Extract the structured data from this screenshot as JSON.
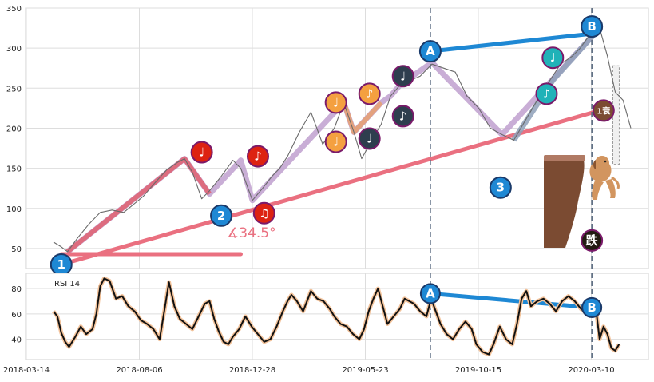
{
  "chart_data": [
    {
      "type": "line",
      "panel": "price",
      "ylim": [
        25,
        350
      ],
      "yticks": [
        50,
        100,
        150,
        200,
        250,
        300,
        350
      ],
      "grid": true,
      "x_dates": [
        "2018-03-14",
        "2018-08-06",
        "2018-12-28",
        "2019-05-23",
        "2019-10-15",
        "2020-03-10"
      ],
      "xlim_days": [
        0,
        740
      ],
      "series": [
        {
          "points": [
            [
              0,
              58
            ],
            [
              10,
              52
            ],
            [
              18,
              46
            ],
            [
              30,
              62
            ],
            [
              45,
              80
            ],
            [
              60,
              95
            ],
            [
              75,
              98
            ],
            [
              90,
              95
            ],
            [
              100,
              103
            ],
            [
              115,
              115
            ],
            [
              130,
              132
            ],
            [
              145,
              148
            ],
            [
              160,
              158
            ],
            [
              168,
              162
            ],
            [
              178,
              145
            ],
            [
              190,
              112
            ],
            [
              200,
              122
            ],
            [
              215,
              140
            ],
            [
              230,
              160
            ],
            [
              240,
              150
            ],
            [
              255,
              110
            ],
            [
              268,
              125
            ],
            [
              280,
              140
            ],
            [
              290,
              150
            ],
            [
              300,
              165
            ],
            [
              315,
              195
            ],
            [
              330,
              220
            ],
            [
              345,
              180
            ],
            [
              360,
              200
            ],
            [
              372,
              232
            ],
            [
              385,
              195
            ],
            [
              395,
              162
            ],
            [
              408,
              185
            ],
            [
              420,
              205
            ],
            [
              432,
              240
            ],
            [
              445,
              255
            ],
            [
              458,
              260
            ],
            [
              470,
              265
            ],
            [
              485,
              280
            ],
            [
              500,
              275
            ],
            [
              515,
              270
            ],
            [
              530,
              240
            ],
            [
              545,
              225
            ],
            [
              560,
              200
            ],
            [
              575,
              192
            ],
            [
              590,
              185
            ],
            [
              605,
              210
            ],
            [
              620,
              235
            ],
            [
              635,
              258
            ],
            [
              650,
              280
            ],
            [
              665,
              290
            ],
            [
              675,
              300
            ],
            [
              690,
              320
            ],
            [
              700,
              325
            ],
            [
              710,
              290
            ],
            [
              720,
              245
            ],
            [
              730,
              235
            ],
            [
              740,
              200
            ]
          ]
        }
      ],
      "annotations": {
        "angle_label": "∡34.5°",
        "points": [
          {
            "label": "1",
            "x": 10,
            "y": 30,
            "color": "#1e88d4"
          },
          {
            "label": "2",
            "x": 215,
            "y": 91,
            "color": "#1e88d4"
          },
          {
            "label": "3",
            "x": 573,
            "y": 126,
            "color": "#1e88d4"
          },
          {
            "label": "A",
            "x": 483,
            "y": 296,
            "color": "#1e88d4"
          },
          {
            "label": "B",
            "x": 690,
            "y": 327,
            "color": "#1e88d4"
          },
          {
            "label": "♩",
            "x": 190,
            "y": 170,
            "color": "#dd2211"
          },
          {
            "label": "♪",
            "x": 262,
            "y": 165,
            "color": "#dd2211"
          },
          {
            "label": "♫",
            "x": 270,
            "y": 94,
            "color": "#dd2211"
          },
          {
            "label": "♩",
            "x": 362,
            "y": 232,
            "color": "#f4a040"
          },
          {
            "label": "♩",
            "x": 362,
            "y": 183,
            "color": "#f4a040"
          },
          {
            "label": "♪",
            "x": 405,
            "y": 243,
            "color": "#f4a040"
          },
          {
            "label": "♩",
            "x": 405,
            "y": 187,
            "color": "#2e3e4e"
          },
          {
            "label": "♩",
            "x": 448,
            "y": 265,
            "color": "#2e3e4e"
          },
          {
            "label": "♪",
            "x": 448,
            "y": 215,
            "color": "#2e3e4e"
          },
          {
            "label": "♩",
            "x": 640,
            "y": 288,
            "color": "#20b2b8"
          },
          {
            "label": "♪",
            "x": 632,
            "y": 243,
            "color": "#20b2b8"
          },
          {
            "label": "1衰",
            "x": 705,
            "y": 222,
            "color": "#7b4b32"
          },
          {
            "label": "跌",
            "x": 690,
            "y": 60,
            "color": "#221a12"
          }
        ]
      }
    },
    {
      "type": "line",
      "panel": "indicator",
      "label": "RSI 14",
      "ylim": [
        24,
        92
      ],
      "yticks": [
        40,
        60,
        80
      ],
      "grid": true,
      "series": [
        {
          "points": [
            [
              0,
              62
            ],
            [
              5,
              58
            ],
            [
              10,
              45
            ],
            [
              15,
              38
            ],
            [
              20,
              34
            ],
            [
              28,
              42
            ],
            [
              35,
              50
            ],
            [
              42,
              44
            ],
            [
              50,
              48
            ],
            [
              55,
              60
            ],
            [
              60,
              82
            ],
            [
              65,
              88
            ],
            [
              72,
              86
            ],
            [
              80,
              72
            ],
            [
              88,
              74
            ],
            [
              96,
              66
            ],
            [
              104,
              62
            ],
            [
              112,
              55
            ],
            [
              120,
              52
            ],
            [
              128,
              48
            ],
            [
              136,
              40
            ],
            [
              142,
              62
            ],
            [
              148,
              85
            ],
            [
              155,
              66
            ],
            [
              162,
              56
            ],
            [
              170,
              52
            ],
            [
              178,
              48
            ],
            [
              186,
              58
            ],
            [
              194,
              68
            ],
            [
              200,
              70
            ],
            [
              206,
              56
            ],
            [
              212,
              46
            ],
            [
              218,
              38
            ],
            [
              224,
              36
            ],
            [
              230,
              42
            ],
            [
              238,
              48
            ],
            [
              246,
              58
            ],
            [
              254,
              50
            ],
            [
              262,
              44
            ],
            [
              270,
              38
            ],
            [
              278,
              40
            ],
            [
              286,
              50
            ],
            [
              294,
              62
            ],
            [
              300,
              70
            ],
            [
              305,
              75
            ],
            [
              312,
              70
            ],
            [
              320,
              62
            ],
            [
              330,
              78
            ],
            [
              338,
              72
            ],
            [
              346,
              70
            ],
            [
              354,
              64
            ],
            [
              360,
              58
            ],
            [
              368,
              52
            ],
            [
              376,
              50
            ],
            [
              384,
              44
            ],
            [
              392,
              40
            ],
            [
              398,
              48
            ],
            [
              404,
              62
            ],
            [
              410,
              72
            ],
            [
              416,
              80
            ],
            [
              422,
              66
            ],
            [
              428,
              52
            ],
            [
              436,
              58
            ],
            [
              444,
              64
            ],
            [
              450,
              72
            ],
            [
              456,
              70
            ],
            [
              462,
              68
            ],
            [
              470,
              62
            ],
            [
              478,
              58
            ],
            [
              484,
              72
            ],
            [
              490,
              62
            ],
            [
              496,
              52
            ],
            [
              504,
              44
            ],
            [
              512,
              40
            ],
            [
              520,
              48
            ],
            [
              528,
              54
            ],
            [
              536,
              48
            ],
            [
              542,
              36
            ],
            [
              550,
              30
            ],
            [
              558,
              28
            ],
            [
              564,
              36
            ],
            [
              572,
              50
            ],
            [
              580,
              40
            ],
            [
              588,
              36
            ],
            [
              594,
              52
            ],
            [
              600,
              72
            ],
            [
              606,
              78
            ],
            [
              612,
              66
            ],
            [
              620,
              70
            ],
            [
              628,
              72
            ],
            [
              636,
              68
            ],
            [
              644,
              62
            ],
            [
              652,
              70
            ],
            [
              660,
              74
            ],
            [
              668,
              70
            ],
            [
              676,
              64
            ],
            [
              684,
              60
            ],
            [
              690,
              66
            ],
            [
              696,
              60
            ],
            [
              700,
              40
            ],
            [
              705,
              50
            ],
            [
              710,
              44
            ],
            [
              715,
              33
            ],
            [
              720,
              31
            ],
            [
              725,
              36
            ]
          ]
        }
      ],
      "annotations": {
        "points": [
          {
            "label": "A",
            "x": 483,
            "y": 76,
            "color": "#1e88d4"
          },
          {
            "label": "B",
            "x": 690,
            "y": 65,
            "color": "#1e88d4"
          }
        ]
      }
    }
  ]
}
